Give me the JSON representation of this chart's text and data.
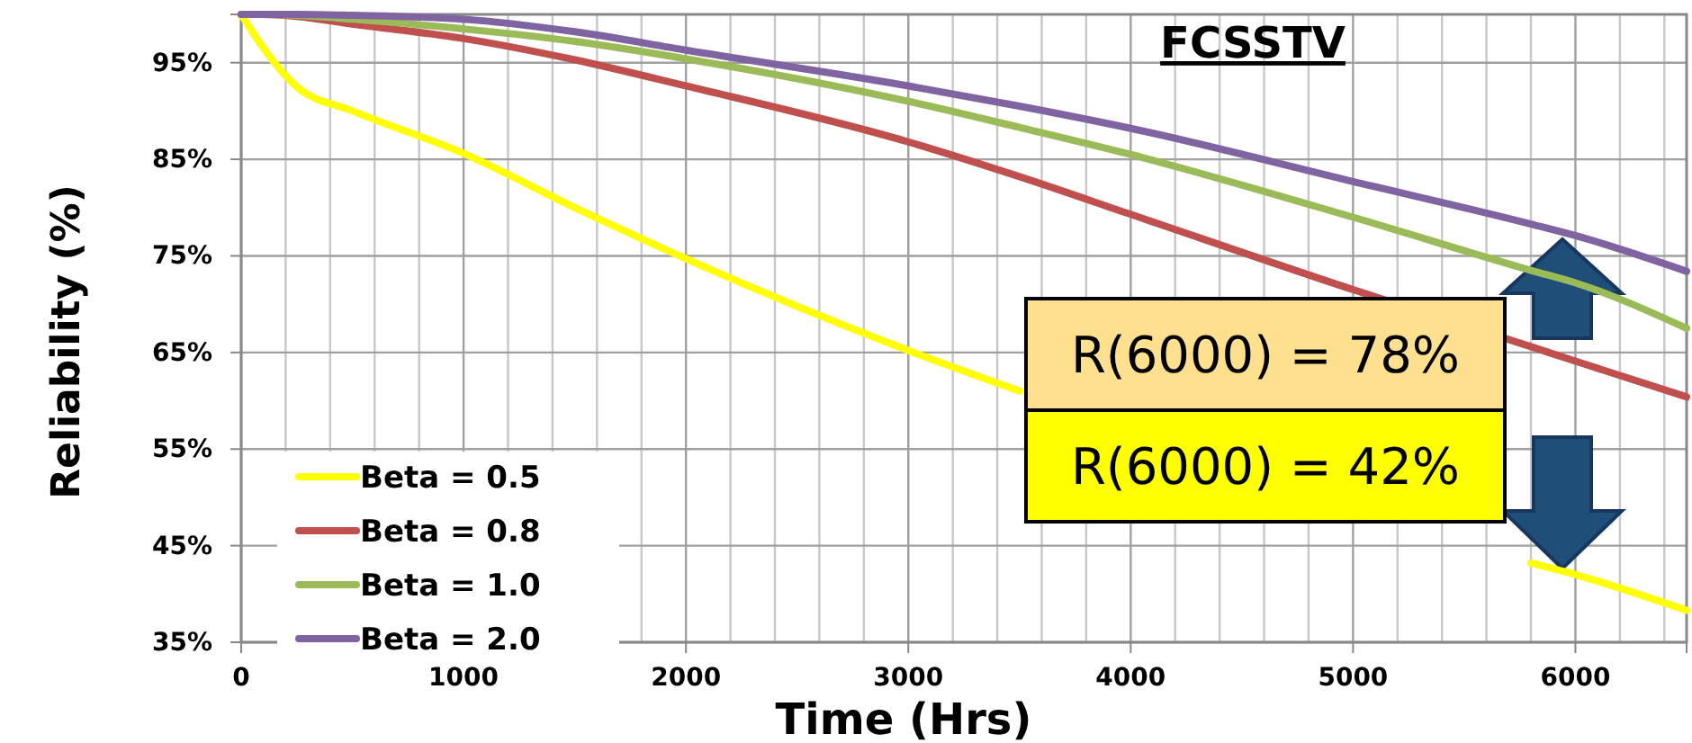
{
  "chart_data": {
    "type": "line",
    "title": "FCSSTV",
    "xlabel": "Time (Hrs)",
    "ylabel": "Reliability (%)",
    "xlim": [
      0,
      6500
    ],
    "xticks": [
      0,
      {
        "value": 200,
        "label": null
      },
      {
        "value": 400,
        "label": null
      },
      {
        "value": 600,
        "label": null
      },
      {
        "value": 800,
        "label": null
      },
      1000,
      {
        "value": 1200,
        "label": null
      },
      {
        "value": 1400,
        "label": null
      },
      {
        "value": 1600,
        "label": null
      },
      {
        "value": 1800,
        "label": null
      },
      2000,
      {
        "value": 2200,
        "label": null
      },
      {
        "value": 2400,
        "label": null
      },
      {
        "value": 2600,
        "label": null
      },
      {
        "value": 2800,
        "label": null
      },
      3000,
      {
        "value": 3200,
        "label": null
      },
      {
        "value": 3400,
        "label": null
      },
      {
        "value": 3600,
        "label": null
      },
      {
        "value": 3800,
        "label": null
      },
      4000,
      {
        "value": 4200,
        "label": null
      },
      {
        "value": 4400,
        "label": null
      },
      {
        "value": 4600,
        "label": null
      },
      {
        "value": 4800,
        "label": null
      },
      5000,
      {
        "value": 5200,
        "label": null
      },
      {
        "value": 5400,
        "label": null
      },
      {
        "value": 5600,
        "label": null
      },
      {
        "value": 5800,
        "label": null
      },
      6000,
      {
        "value": 6200,
        "label": null
      },
      {
        "value": 6400,
        "label": null
      }
    ],
    "ylim": [
      35,
      100
    ],
    "yticks": [
      {
        "value": 35,
        "label": "35%"
      },
      {
        "value": 45,
        "label": "45%"
      },
      {
        "value": 55,
        "label": "55%"
      },
      {
        "value": 65,
        "label": "65%"
      },
      {
        "value": 75,
        "label": "75%"
      },
      {
        "value": 85,
        "label": "85%"
      },
      {
        "value": 95,
        "label": "95%"
      }
    ],
    "x": [
      0,
      100,
      250,
      500,
      1000,
      1500,
      2000,
      3000,
      3500,
      4000,
      5000,
      5800,
      6000,
      6500
    ],
    "series": [
      {
        "name": "Beta = 0.5",
        "color": "#ffff00",
        "values": [
          100,
          96.5,
          92.5,
          90,
          85.6,
          80,
          74.7,
          65.2,
          61,
          null,
          null,
          43.2,
          42,
          38.3
        ]
      },
      {
        "name": "Beta = 0.8",
        "color": "#c0504d",
        "values": [
          100,
          100,
          99.8,
          99,
          97.5,
          95.3,
          92.6,
          86.8,
          83.2,
          79.3,
          71.5,
          65.6,
          64.1,
          60.4
        ]
      },
      {
        "name": "Beta = 1.0",
        "color": "#9bbb59",
        "values": [
          100,
          100,
          99.9,
          99.5,
          98.5,
          97.2,
          95.4,
          91,
          88.3,
          85.5,
          79,
          73.5,
          72.2,
          67.5
        ]
      },
      {
        "name": "Beta = 2.0",
        "color": "#8064a2",
        "values": [
          100,
          100,
          100,
          99.9,
          99.5,
          98.2,
          96.3,
          92.6,
          90.5,
          88.2,
          82.7,
          78.3,
          77.1,
          73.4
        ]
      }
    ],
    "annotations": [
      "R(6000) = 78%",
      "R(6000) = 42%"
    ],
    "grid": true,
    "legend": "bottom left",
    "marker": "none",
    "line_style": "solid"
  }
}
